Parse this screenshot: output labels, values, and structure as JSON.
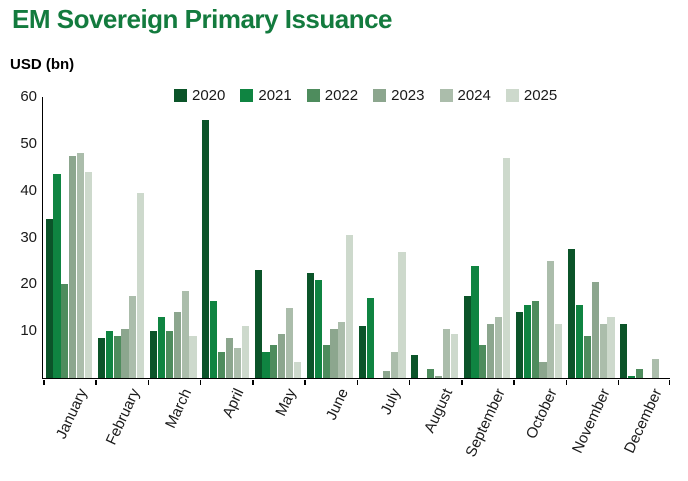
{
  "chart_data": {
    "type": "bar",
    "title": "EM Sovereign Primary Issuance",
    "title_color": "#137b3e",
    "ylabel": "USD (bn)",
    "xlabel": "",
    "ylim": [
      0,
      60
    ],
    "y_ticks": [
      60,
      50,
      40,
      30,
      20,
      10
    ],
    "grid": false,
    "legend_position": "top-center",
    "categories": [
      "January",
      "February",
      "March",
      "April",
      "May",
      "June",
      "July",
      "August",
      "September",
      "October",
      "November",
      "December"
    ],
    "series": [
      {
        "name": "2020",
        "color": "#0b5429",
        "values": [
          34,
          8.5,
          10,
          55,
          23,
          22.5,
          11,
          5,
          17.5,
          14,
          27.5,
          11.5
        ]
      },
      {
        "name": "2021",
        "color": "#0f8441",
        "values": [
          43.5,
          10,
          13,
          16.5,
          5.5,
          21,
          17,
          0,
          24,
          15.5,
          15.5,
          0.5
        ]
      },
      {
        "name": "2022",
        "color": "#4e8c5d",
        "values": [
          20,
          9,
          10,
          5.5,
          7,
          7,
          0,
          2,
          7,
          16.5,
          9,
          2
        ]
      },
      {
        "name": "2023",
        "color": "#8ca68e",
        "values": [
          47.5,
          10.5,
          14,
          8.5,
          9.5,
          10.5,
          1.5,
          0.5,
          11.5,
          3.5,
          20.5,
          0
        ]
      },
      {
        "name": "2024",
        "color": "#abbdab",
        "values": [
          48,
          17.5,
          18.5,
          6.5,
          15,
          12,
          5.5,
          10.5,
          13,
          25,
          11.5,
          4
        ]
      },
      {
        "name": "2025",
        "color": "#cdd9cc",
        "values": [
          44,
          39.5,
          9,
          11,
          3.5,
          30.5,
          27,
          9.5,
          47,
          11.5,
          13,
          0
        ]
      }
    ]
  }
}
